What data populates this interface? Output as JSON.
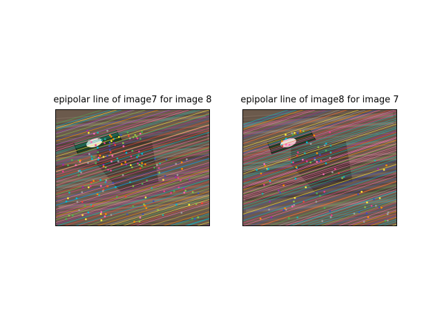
{
  "figure": {
    "panels": [
      {
        "title": "epipolar line of image7 for image 8",
        "line_angle_deg": -17,
        "box_position": "top-left",
        "line_count": 70,
        "point_count": 190
      },
      {
        "title": "epipolar line of image8 for image 7",
        "line_angle_deg": -18,
        "box_position": "top-left",
        "line_count": 75,
        "point_count": 110
      }
    ],
    "colors": {
      "wood_base": "#6b5a4c",
      "wood_dark": "#3f342c",
      "wood_light": "#9a8878",
      "box_green": "#1f3d26",
      "box_label": "#e8e4d8",
      "line_palette": [
        "#e83e8c",
        "#4caf50",
        "#ff8c00",
        "#9c27b0",
        "#00bcd4",
        "#ffeb3b",
        "#3f51b5",
        "#8bc34a",
        "#f44336",
        "#9e9e9e",
        "#ff69b4",
        "#20b2aa"
      ]
    }
  }
}
